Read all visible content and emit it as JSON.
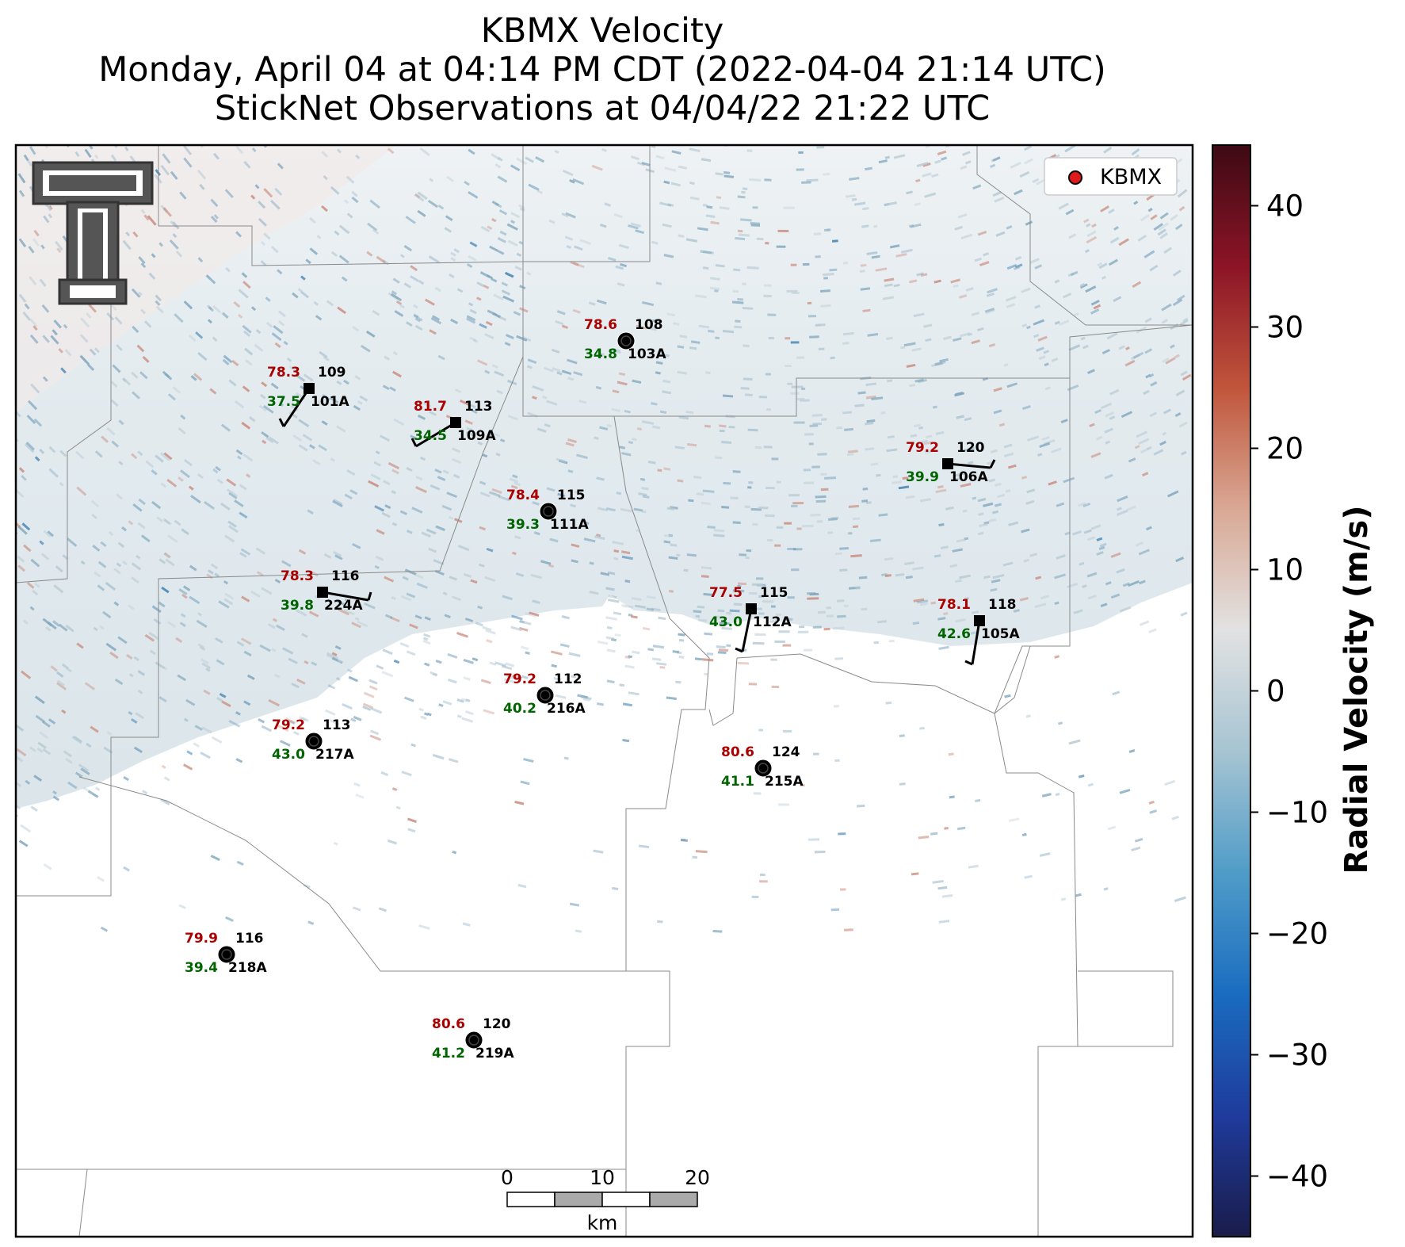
{
  "title": {
    "line1": "KBMX Velocity",
    "line2": "Monday, April 04 at 04:14 PM CDT (2022-04-04 21:14 UTC)",
    "line3": "StickNet Observations at 04/04/22 21:22 UTC"
  },
  "legend": {
    "radar_label": "KBMX",
    "marker_color": "#e0191c"
  },
  "colorbar": {
    "label": "Radial Velocity (m/s)",
    "ticks": [
      "40",
      "30",
      "20",
      "10",
      "0",
      "−10",
      "−20",
      "−30",
      "−40"
    ],
    "range": [
      -45,
      45
    ],
    "stops": [
      "#1a1c4a",
      "#1f3b9c",
      "#1a6cc0",
      "#4f9cc8",
      "#a6c4d2",
      "#e2e2e2",
      "#d9a894",
      "#c0553b",
      "#8c1426",
      "#3d0a14"
    ]
  },
  "scalebar": {
    "labels": [
      "0",
      "10",
      "20"
    ],
    "unit": "km"
  },
  "stations": [
    {
      "id": "108",
      "temp": "78.6",
      "dew": "34.8",
      "probe": "103A",
      "marker": "circle"
    },
    {
      "id": "109",
      "temp": "78.3",
      "dew": "37.5",
      "probe": "101A",
      "marker": "square"
    },
    {
      "id": "113",
      "temp": "81.7",
      "dew": "34.5",
      "probe": "109A",
      "marker": "square"
    },
    {
      "id": "120",
      "temp": "79.2",
      "dew": "39.9",
      "probe": "106A",
      "marker": "square"
    },
    {
      "id": "115",
      "temp": "78.4",
      "dew": "39.3",
      "probe": "111A",
      "marker": "circle"
    },
    {
      "id": "116",
      "temp": "78.3",
      "dew": "39.8",
      "probe": "224A",
      "marker": "square"
    },
    {
      "id": "115",
      "temp": "77.5",
      "dew": "43.0",
      "probe": "112A",
      "marker": "square"
    },
    {
      "id": "118",
      "temp": "78.1",
      "dew": "42.6",
      "probe": "105A",
      "marker": "square"
    },
    {
      "id": "112",
      "temp": "79.2",
      "dew": "40.2",
      "probe": "216A",
      "marker": "circle"
    },
    {
      "id": "113",
      "temp": "79.2",
      "dew": "43.0",
      "probe": "217A",
      "marker": "circle"
    },
    {
      "id": "124",
      "temp": "80.6",
      "dew": "41.1",
      "probe": "215A",
      "marker": "circle"
    },
    {
      "id": "116",
      "temp": "79.9",
      "dew": "39.4",
      "probe": "218A",
      "marker": "circle"
    },
    {
      "id": "120",
      "temp": "80.6",
      "dew": "41.2",
      "probe": "219A",
      "marker": "circle"
    }
  ],
  "colors": {
    "temp": "#aa0000",
    "dew": "#006400",
    "id": "#000000"
  },
  "logo_icon": "texas-tech-double-t-logo-icon"
}
